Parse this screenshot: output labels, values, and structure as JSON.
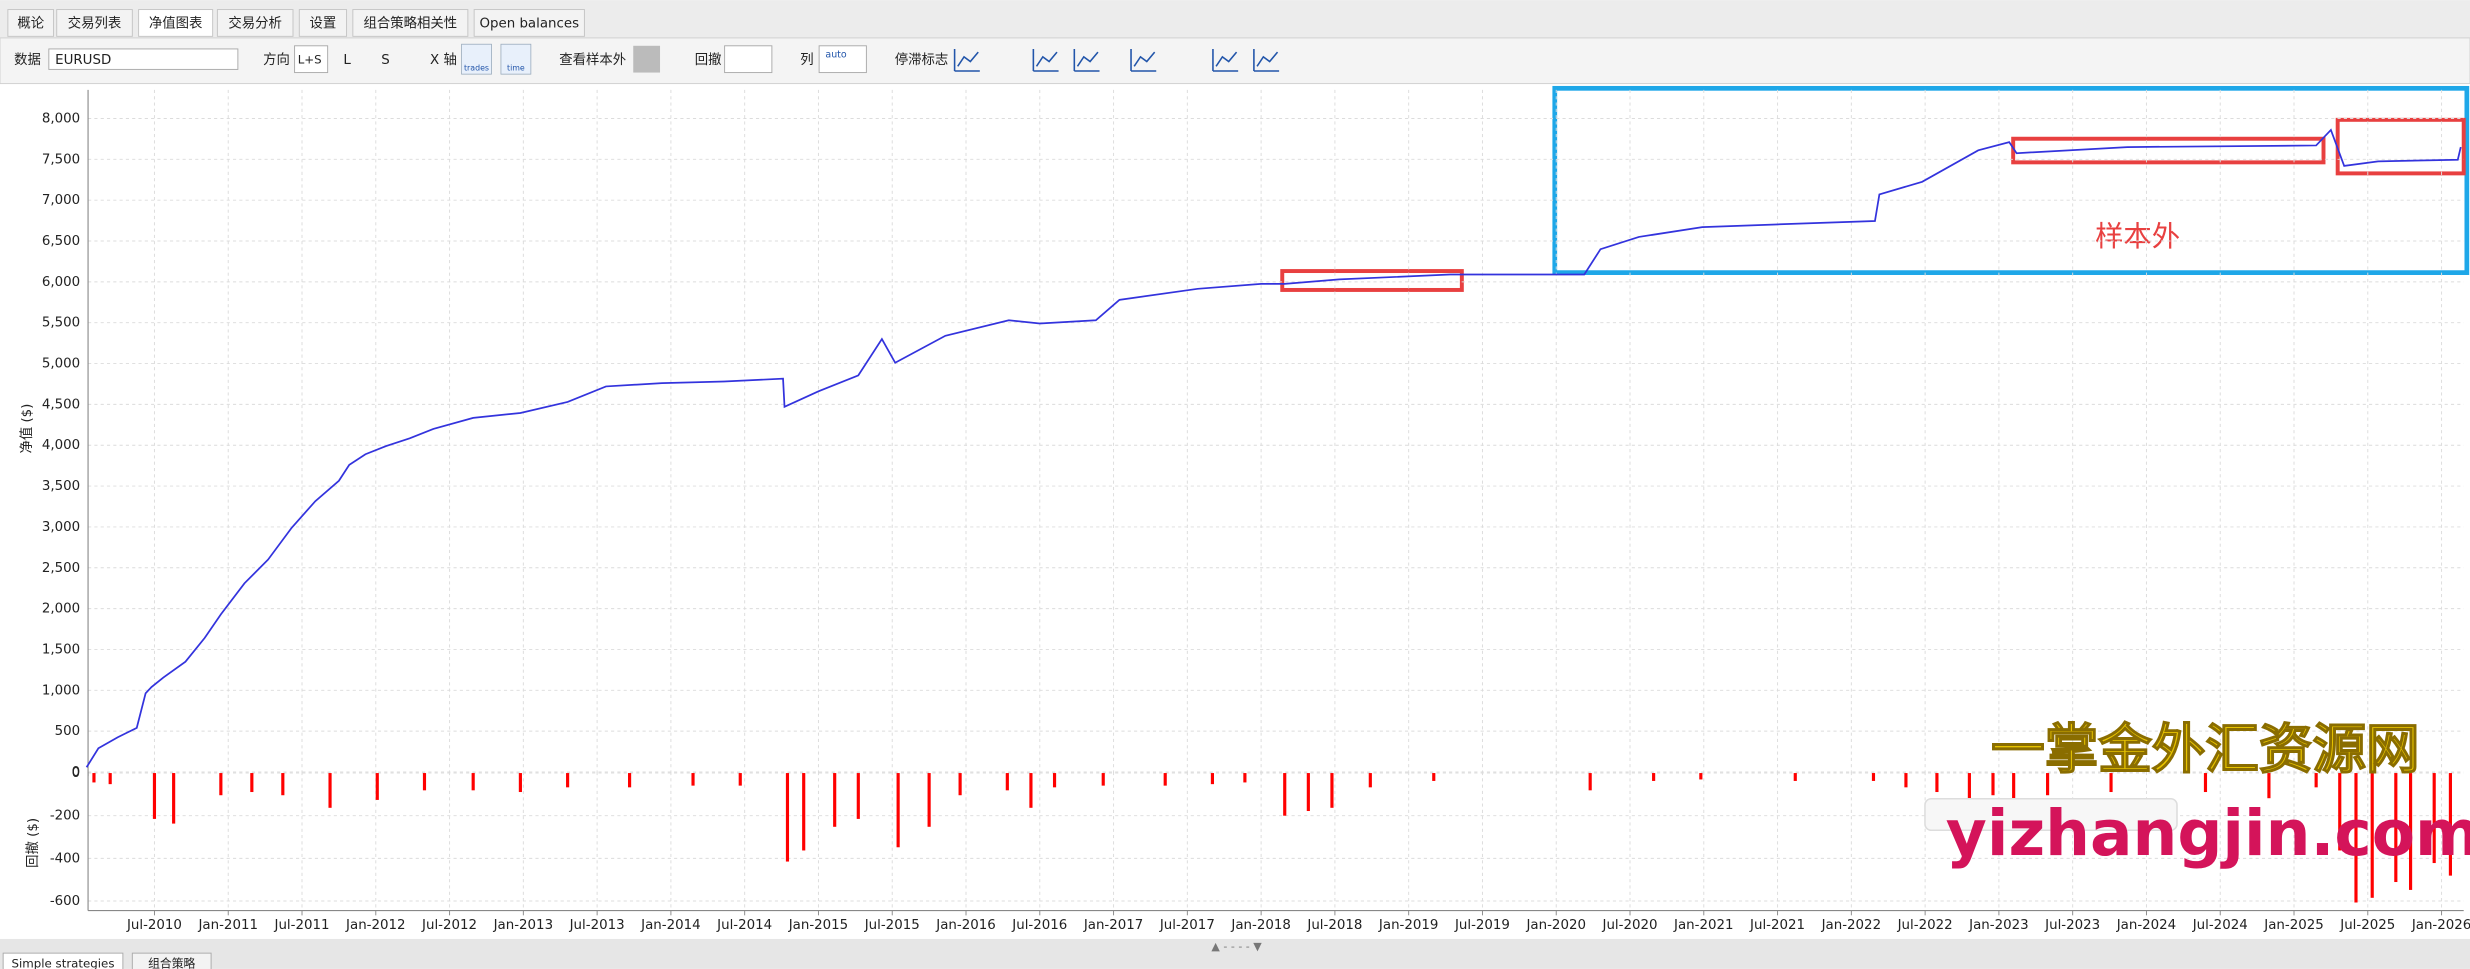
{
  "tabs": [
    "概论",
    "交易列表",
    "净值图表",
    "交易分析",
    "设置",
    "组合策略相关性",
    "Open balances"
  ],
  "toolbar": {
    "data_label": "数据",
    "symbol": "EURUSD",
    "direction_label": "方向",
    "directions": [
      "L+S",
      "L",
      "S"
    ],
    "xaxis_label": "X 轴",
    "xaxis_options": [
      "trades",
      "time"
    ],
    "oos_label": "查看样本外",
    "drawdown_label": "回撤",
    "columns_label": "列",
    "columns_value": "auto",
    "stagnation_label": "停滞标志"
  },
  "chart_data": [
    {
      "type": "line",
      "ylabel": "净值 ($)",
      "annotation": "样本外",
      "color": "#3333dd",
      "grid": true,
      "xlim": [
        2010.05,
        2026.15
      ],
      "ylim": [
        -50,
        8350
      ],
      "yticks": [
        0,
        {
          "value": 500,
          "label": "500"
        },
        {
          "value": 1000,
          "label": "1,000"
        },
        {
          "value": 1500,
          "label": "1,500"
        },
        {
          "value": 2000,
          "label": "2,000"
        },
        {
          "value": 2500,
          "label": "2,500"
        },
        {
          "value": 3000,
          "label": "3,000"
        },
        {
          "value": 3500,
          "label": "3,500"
        },
        {
          "value": 4000,
          "label": "4,000"
        },
        {
          "value": 4500,
          "label": "4,500"
        },
        {
          "value": 5000,
          "label": "5,000"
        },
        {
          "value": 5500,
          "label": "5,500"
        },
        {
          "value": 6000,
          "label": "6,000"
        },
        {
          "value": 6500,
          "label": "6,500"
        },
        {
          "value": 7000,
          "label": "7,000"
        },
        {
          "value": 7500,
          "label": "7,500"
        },
        {
          "value": 8000,
          "label": "8,000"
        }
      ],
      "x": [
        2010.04,
        2010.12,
        2010.25,
        2010.38,
        2010.44,
        2010.48,
        2010.56,
        2010.71,
        2010.84,
        2010.95,
        2011.11,
        2011.27,
        2011.43,
        2011.59,
        2011.75,
        2011.82,
        2011.93,
        2012.07,
        2012.23,
        2012.39,
        2012.66,
        2012.98,
        2013.3,
        2013.56,
        2013.94,
        2014.36,
        2014.76,
        2014.77,
        2015.0,
        2015.27,
        2015.43,
        2015.52,
        2015.86,
        2016.29,
        2016.5,
        2016.88,
        2017.04,
        2017.57,
        2018.0,
        2018.16,
        2018.53,
        2019.28,
        2020.19,
        2020.3,
        2020.56,
        2020.99,
        2021.52,
        2022.16,
        2022.19,
        2022.48,
        2022.86,
        2023.07,
        2023.12,
        2023.87,
        2025.15,
        2025.25,
        2025.34,
        2025.57,
        2026.11,
        2026.13
      ],
      "values": [
        58,
        290,
        424,
        540,
        964,
        1040,
        1156,
        1350,
        1640,
        1930,
        2310,
        2600,
        2990,
        3315,
        3565,
        3760,
        3890,
        3990,
        4085,
        4200,
        4335,
        4395,
        4530,
        4720,
        4760,
        4780,
        4815,
        4470,
        4660,
        4855,
        5300,
        5010,
        5340,
        5530,
        5490,
        5530,
        5780,
        5915,
        5975,
        5975,
        6030,
        6090,
        6090,
        6400,
        6550,
        6670,
        6705,
        6745,
        7070,
        7225,
        7610,
        7710,
        7575,
        7650,
        7670,
        7860,
        7420,
        7475,
        7495,
        7650
      ]
    },
    {
      "type": "bar",
      "ylabel": "回撤 ($)",
      "color": "#ff0000",
      "grid": true,
      "xlim": [
        2010.05,
        2026.15
      ],
      "ylim": [
        -645,
        5
      ],
      "yticks": [
        0,
        -200,
        -400,
        -600
      ],
      "xticks": [
        {
          "value": 2010.5,
          "label": "Jul-2010"
        },
        {
          "value": 2011,
          "label": "Jan-2011"
        },
        {
          "value": 2011.5,
          "label": "Jul-2011"
        },
        {
          "value": 2012,
          "label": "Jan-2012"
        },
        {
          "value": 2012.5,
          "label": "Jul-2012"
        },
        {
          "value": 2013,
          "label": "Jan-2013"
        },
        {
          "value": 2013.5,
          "label": "Jul-2013"
        },
        {
          "value": 2014,
          "label": "Jan-2014"
        },
        {
          "value": 2014.5,
          "label": "Jul-2014"
        },
        {
          "value": 2015,
          "label": "Jan-2015"
        },
        {
          "value": 2015.5,
          "label": "Jul-2015"
        },
        {
          "value": 2016,
          "label": "Jan-2016"
        },
        {
          "value": 2016.5,
          "label": "Jul-2016"
        },
        {
          "value": 2017,
          "label": "Jan-2017"
        },
        {
          "value": 2017.5,
          "label": "Jul-2017"
        },
        {
          "value": 2018,
          "label": "Jan-2018"
        },
        {
          "value": 2018.5,
          "label": "Jul-2018"
        },
        {
          "value": 2019,
          "label": "Jan-2019"
        },
        {
          "value": 2019.5,
          "label": "Jul-2019"
        },
        {
          "value": 2020,
          "label": "Jan-2020"
        },
        {
          "value": 2020.5,
          "label": "Jul-2020"
        },
        {
          "value": 2021,
          "label": "Jan-2021"
        },
        {
          "value": 2021.5,
          "label": "Jul-2021"
        },
        {
          "value": 2022,
          "label": "Jan-2022"
        },
        {
          "value": 2022.5,
          "label": "Jul-2022"
        },
        {
          "value": 2023,
          "label": "Jan-2023"
        },
        {
          "value": 2023.5,
          "label": "Jul-2023"
        },
        {
          "value": 2024,
          "label": "Jan-2024"
        },
        {
          "value": 2024.5,
          "label": "Jul-2024"
        },
        {
          "value": 2025,
          "label": "Jan-2025"
        },
        {
          "value": 2025.5,
          "label": "Jul-2025"
        },
        {
          "value": 2026,
          "label": "Jan-2026"
        }
      ],
      "x": [
        2010.09,
        2010.2,
        2010.5,
        2010.63,
        2010.95,
        2011.16,
        2011.37,
        2011.69,
        2012.01,
        2012.33,
        2012.66,
        2012.98,
        2013.3,
        2013.72,
        2014.15,
        2014.47,
        2014.79,
        2014.9,
        2015.11,
        2015.27,
        2015.54,
        2015.75,
        2015.96,
        2016.28,
        2016.44,
        2016.6,
        2016.93,
        2017.35,
        2017.67,
        2017.89,
        2018.16,
        2018.32,
        2018.48,
        2018.74,
        2019.17,
        2020.23,
        2020.66,
        2020.98,
        2021.62,
        2022.15,
        2022.37,
        2022.58,
        2022.8,
        2022.96,
        2023.1,
        2023.33,
        2023.76,
        2024.4,
        2024.83,
        2025.15,
        2025.31,
        2025.42,
        2025.53,
        2025.69,
        2025.79,
        2025.95,
        2026.06
      ],
      "values": [
        -44,
        -52,
        -215,
        -237,
        -104,
        -89,
        -104,
        -163,
        -126,
        -81,
        -81,
        -89,
        -67,
        -67,
        -59,
        -59,
        -415,
        -363,
        -252,
        -215,
        -348,
        -252,
        -104,
        -81,
        -163,
        -67,
        -59,
        -59,
        -52,
        -44,
        -200,
        -178,
        -163,
        -67,
        -37,
        -81,
        -37,
        -30,
        -37,
        -37,
        -67,
        -89,
        -118,
        -104,
        -163,
        -104,
        -89,
        -89,
        -118,
        -67,
        -363,
        -607,
        -585,
        -511,
        -548,
        -422,
        -481
      ]
    }
  ],
  "watermark": {
    "title": "一掌金外汇资源网",
    "url": "yizhangjin.com"
  },
  "bottom_tabs": [
    "Simple strategies",
    "组合策略"
  ]
}
